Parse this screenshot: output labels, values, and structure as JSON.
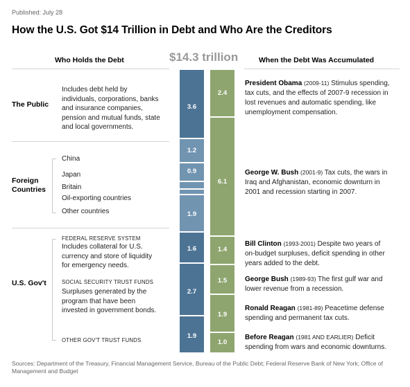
{
  "published": "Published: July 28",
  "title": "How the U.S. Got $14 Trillion in Debt and Who Are the Creditors",
  "headers": {
    "left": "Who Holds the Debt",
    "total": "$14.3 trillion",
    "right": "When the Debt Was Accumulated"
  },
  "holders": {
    "public": {
      "label": "The Public",
      "desc": [
        "Includes debt held by",
        "individuals, corporations, banks",
        "and insurance companies,",
        "pension and mutual funds, state",
        "and local governments."
      ]
    },
    "foreign": {
      "label": [
        "Foreign",
        "Countries"
      ],
      "items": [
        "China",
        "Japan",
        "Britain",
        "Oil-exporting countries",
        "Other countries"
      ]
    },
    "govt": {
      "label": "U.S. Gov't",
      "fed_cap": "FEDERAL RESERVE SYSTEM",
      "fed_desc": [
        "Includes collateral for U.S.",
        "currency and store of liquidity",
        "for emergency needs."
      ],
      "ss_cap": "SOCIAL SECURITY TRUST FUNDS",
      "ss_desc": [
        "Surpluses generated by the",
        "program that have been",
        "invested in government bonds."
      ],
      "other_cap": "OTHER GOV'T TRUST FUNDS"
    }
  },
  "eras": {
    "obama": {
      "name": "President Obama",
      "years": "(2009-11)",
      "lines": [
        "Stimulus spending,",
        "tax cuts, and the effects of 2007-9 recession in",
        "lost revenues and automatic spending, like",
        "unemployment compensation."
      ]
    },
    "bush": {
      "name": "George W. Bush",
      "years": "(2001-9)",
      "lines": [
        "Tax cuts, the wars in",
        "Iraq and Afghanistan, economic downturn in",
        "2001 and recession starting in 2007."
      ]
    },
    "clinton": {
      "name": "Bill Clinton",
      "years": "(1993-2001)",
      "lines": [
        "Despite two years of",
        "on-budget surpluses, deficit spending in other",
        "years added to the debt."
      ]
    },
    "bush_sr": {
      "name": "George Bush",
      "years": "(1989-93)",
      "lines": [
        "The first gulf war and",
        "lower revenue from a recession."
      ]
    },
    "reagan": {
      "name": "Ronald Reagan",
      "years": "(1981-89)",
      "lines": [
        "Peacetime defense",
        "spending and permanent tax cuts."
      ]
    },
    "before_reagan": {
      "name": "Before Reagan",
      "years": "(1981 AND EARLIER)",
      "lines": [
        "Deficit",
        "spending from wars and economic downturns."
      ]
    }
  },
  "sources": "Sources: Department of the Treasury, Financial Management Service, Bureau of the Public Debt; Federal Reserve Bank of New York; Office of Management and Budget",
  "chart_data": {
    "type": "stacked_bar",
    "unit": "trillion dollars",
    "total": 14.3,
    "bars": [
      {
        "id": "holders",
        "segments": [
          {
            "name": "The Public",
            "value": 3.6,
            "label": "3.6",
            "color": "#4c7394"
          },
          {
            "name": "China",
            "value": 1.2,
            "label": "1.2",
            "color": "#7194b1"
          },
          {
            "name": "Japan",
            "value": 0.9,
            "label": "0.9",
            "color": "#7194b1"
          },
          {
            "name": "Britain",
            "value": 0.35,
            "label": "",
            "color": "#7194b1"
          },
          {
            "name": "Oil-exporting countries",
            "value": 0.2,
            "label": "",
            "color": "#7194b1"
          },
          {
            "name": "Other countries",
            "value": 1.9,
            "label": "1.9",
            "color": "#7194b1"
          },
          {
            "name": "Federal Reserve System",
            "value": 1.6,
            "label": "1.6",
            "color": "#4c7394"
          },
          {
            "name": "Social Security Trust Funds",
            "value": 2.7,
            "label": "2.7",
            "color": "#4c7394"
          },
          {
            "name": "Other Gov't Trust Funds",
            "value": 1.9,
            "label": "1.9",
            "color": "#4c7394"
          }
        ]
      },
      {
        "id": "eras",
        "segments": [
          {
            "name": "President Obama",
            "value": 2.4,
            "label": "2.4",
            "color": "#8ea56f"
          },
          {
            "name": "George W. Bush",
            "value": 6.1,
            "label": "6.1",
            "color": "#8ea56f"
          },
          {
            "name": "Bill Clinton",
            "value": 1.4,
            "label": "1.4",
            "color": "#8ea56f"
          },
          {
            "name": "George Bush",
            "value": 1.5,
            "label": "1.5",
            "color": "#8ea56f"
          },
          {
            "name": "Ronald Reagan",
            "value": 1.9,
            "label": "1.9",
            "color": "#8ea56f"
          },
          {
            "name": "Before Reagan",
            "value": 1.0,
            "label": "1.0",
            "color": "#8ea56f"
          }
        ]
      }
    ]
  }
}
